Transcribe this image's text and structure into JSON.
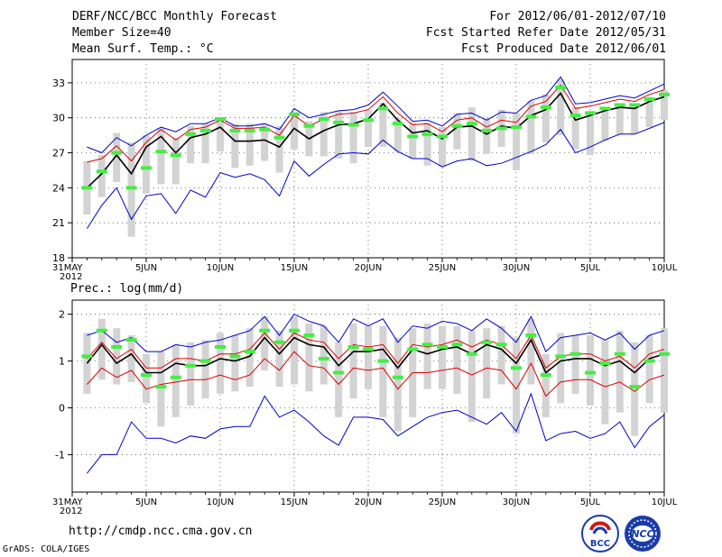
{
  "header": {
    "title": "DERF/NCC/BCC Monthly Forecast",
    "member": "Member Size=40",
    "variable": "Mean Surf. Temp.: °C",
    "period": "For 2012/06/01-2012/07/10",
    "refer_date": "Fcst Started Refer Date 2012/05/31",
    "produced_date": "Fcst Produced Date 2012/06/01"
  },
  "footer": {
    "url": "http://cmdp.ncc.cma.gov.cn",
    "grads": "GrADS: COLA/IGES",
    "logo_bcc": "BCC",
    "logo_ncc": "NCC"
  },
  "colors": {
    "max": "#0000cc",
    "min": "#0000cc",
    "p75": "#dd0000",
    "median": "#000000",
    "bar": "#d3d3d3",
    "obs": "#44ee44"
  },
  "chart_data": [
    {
      "type": "box-line",
      "title": "",
      "ylabel": "",
      "ylim": [
        18,
        35
      ],
      "yticks": [
        18,
        21,
        24,
        27,
        30,
        33
      ],
      "xlim": [
        0,
        40
      ],
      "xticks": [
        {
          "x": 0,
          "label": "31MAY",
          "sub": "2012"
        },
        {
          "x": 5,
          "label": "5JUN"
        },
        {
          "x": 10,
          "label": "10JUN"
        },
        {
          "x": 15,
          "label": "15JUN"
        },
        {
          "x": 20,
          "label": "20JUN"
        },
        {
          "x": 25,
          "label": "25JUN"
        },
        {
          "x": 30,
          "label": "30JUN"
        },
        {
          "x": 35,
          "label": "5JUL"
        },
        {
          "x": 40,
          "label": "10JUL"
        }
      ],
      "x": [
        1,
        2,
        3,
        4,
        5,
        6,
        7,
        8,
        9,
        10,
        11,
        12,
        13,
        14,
        15,
        16,
        17,
        18,
        19,
        20,
        21,
        22,
        23,
        24,
        25,
        26,
        27,
        28,
        29,
        30,
        31,
        32,
        33,
        34,
        35,
        36,
        37,
        38,
        39,
        40
      ],
      "max": [
        27.5,
        27.0,
        28.3,
        27.6,
        28.5,
        29.2,
        28.8,
        29.5,
        29.5,
        30.0,
        29.3,
        29.3,
        29.5,
        29.0,
        30.8,
        30.0,
        30.3,
        30.6,
        30.7,
        31.1,
        32.2,
        31.0,
        29.7,
        29.8,
        29.3,
        30.3,
        30.4,
        29.8,
        30.5,
        30.4,
        31.5,
        31.9,
        33.5,
        31.2,
        31.3,
        31.6,
        31.9,
        31.7,
        32.3,
        32.9
      ],
      "p75": [
        26.2,
        26.5,
        27.6,
        26.3,
        27.9,
        29.0,
        28.1,
        29.0,
        29.2,
        29.8,
        29.1,
        29.1,
        29.2,
        28.5,
        30.2,
        29.3,
        29.9,
        30.3,
        30.4,
        30.7,
        31.8,
        30.4,
        29.4,
        29.5,
        28.8,
        29.8,
        30.0,
        29.2,
        29.8,
        29.6,
        31.0,
        31.4,
        32.8,
        30.8,
        31.0,
        31.3,
        31.6,
        31.4,
        32.0,
        32.4
      ],
      "median": [
        24.0,
        25.2,
        26.8,
        25.2,
        27.5,
        28.4,
        27.0,
        28.3,
        28.6,
        29.2,
        28.0,
        28.0,
        28.1,
        27.5,
        29.1,
        28.2,
        28.9,
        29.4,
        29.5,
        29.9,
        31.2,
        29.8,
        28.7,
        28.9,
        28.2,
        29.2,
        29.3,
        28.6,
        29.3,
        29.1,
        30.2,
        30.7,
        32.1,
        29.8,
        30.2,
        30.6,
        30.9,
        30.8,
        31.4,
        31.8
      ],
      "min": [
        20.5,
        22.5,
        24.0,
        21.3,
        23.3,
        23.5,
        21.8,
        23.8,
        23.2,
        25.3,
        24.9,
        25.2,
        24.7,
        23.3,
        26.3,
        25.0,
        26.0,
        26.9,
        27.0,
        26.9,
        28.1,
        27.1,
        26.5,
        26.5,
        25.8,
        26.3,
        26.5,
        25.9,
        26.1,
        26.6,
        27.1,
        27.7,
        29.0,
        27.0,
        27.5,
        28.1,
        28.6,
        28.6,
        29.1,
        29.6
      ],
      "bar_top": [
        26.3,
        26.8,
        28.7,
        27.9,
        28.5,
        29.1,
        28.3,
        29.3,
        29.5,
        30.0,
        29.5,
        29.5,
        29.4,
        29.3,
        30.5,
        29.7,
        30.5,
        30.6,
        30.5,
        30.7,
        31.3,
        30.0,
        29.6,
        29.6,
        29.2,
        30.4,
        30.9,
        30.0,
        30.7,
        30.4,
        31.5,
        32.0,
        33.3,
        30.9,
        30.6,
        30.9,
        31.0,
        30.9,
        31.5,
        32.4
      ],
      "bar_bottom": [
        21.7,
        23.2,
        24.5,
        19.8,
        23.5,
        24.3,
        24.3,
        26.1,
        26.1,
        27.1,
        25.7,
        25.9,
        26.3,
        25.3,
        27.3,
        26.7,
        26.7,
        26.5,
        26.1,
        27.5,
        27.5,
        27.1,
        26.5,
        25.9,
        25.8,
        27.3,
        26.3,
        26.9,
        27.5,
        25.5,
        26.9,
        27.9,
        28.5,
        27.3,
        26.8,
        28.0,
        28.6,
        28.6,
        29.2,
        29.8
      ],
      "obs": [
        24.0,
        25.4,
        27.0,
        24.0,
        25.7,
        27.1,
        26.8,
        28.6,
        28.9,
        29.9,
        28.9,
        28.9,
        29.0,
        28.3,
        30.3,
        29.3,
        29.9,
        29.6,
        29.4,
        29.8,
        30.8,
        29.5,
        28.4,
        28.6,
        28.4,
        29.3,
        29.5,
        28.9,
        29.1,
        29.2,
        30.1,
        30.9,
        32.6,
        30.2,
        30.4,
        30.8,
        31.1,
        31.1,
        31.6,
        32.0
      ],
      "legend": []
    },
    {
      "type": "box-line",
      "title": "Prec.: log(mm/d)",
      "ylabel": "",
      "ylim": [
        -1.8,
        2.3
      ],
      "yticks": [
        -1,
        0,
        1,
        2
      ],
      "xlim": [
        0,
        40
      ],
      "xticks": [
        {
          "x": 0,
          "label": "31MAY",
          "sub": "2012"
        },
        {
          "x": 5,
          "label": "5JUN"
        },
        {
          "x": 10,
          "label": "10JUN"
        },
        {
          "x": 15,
          "label": "15JUN"
        },
        {
          "x": 20,
          "label": "20JUN"
        },
        {
          "x": 25,
          "label": "25JUN"
        },
        {
          "x": 30,
          "label": "30JUN"
        },
        {
          "x": 35,
          "label": "5JUL"
        },
        {
          "x": 40,
          "label": "10JUL"
        }
      ],
      "x": [
        1,
        2,
        3,
        4,
        5,
        6,
        7,
        8,
        9,
        10,
        11,
        12,
        13,
        14,
        15,
        16,
        17,
        18,
        19,
        20,
        21,
        22,
        23,
        24,
        25,
        26,
        27,
        28,
        29,
        30,
        31,
        32,
        33,
        34,
        35,
        36,
        37,
        38,
        39,
        40
      ],
      "max": [
        1.55,
        1.65,
        1.4,
        1.5,
        1.2,
        1.2,
        1.35,
        1.3,
        1.4,
        1.45,
        1.55,
        1.65,
        1.95,
        1.55,
        2.0,
        1.85,
        1.75,
        1.4,
        1.9,
        1.75,
        1.9,
        1.4,
        1.75,
        1.7,
        1.85,
        1.8,
        1.65,
        1.9,
        1.7,
        1.4,
        1.95,
        1.2,
        1.5,
        1.55,
        1.6,
        1.45,
        1.6,
        1.25,
        1.55,
        1.65
      ],
      "p75": [
        1.05,
        1.4,
        1.05,
        1.25,
        0.85,
        0.85,
        1.05,
        1.05,
        1.0,
        1.15,
        1.15,
        1.25,
        1.6,
        1.25,
        1.6,
        1.45,
        1.4,
        1.05,
        1.35,
        1.3,
        1.35,
        0.95,
        1.35,
        1.3,
        1.35,
        1.45,
        1.3,
        1.45,
        1.35,
        1.05,
        1.55,
        0.85,
        1.1,
        1.15,
        1.15,
        1.0,
        1.1,
        0.85,
        1.15,
        1.25
      ],
      "median": [
        0.95,
        1.35,
        0.95,
        1.15,
        0.75,
        0.75,
        0.95,
        0.9,
        0.9,
        1.05,
        1.0,
        1.1,
        1.5,
        1.15,
        1.5,
        1.35,
        1.3,
        0.9,
        1.2,
        1.2,
        1.25,
        0.85,
        1.25,
        1.15,
        1.25,
        1.3,
        1.15,
        1.35,
        1.25,
        0.95,
        1.45,
        0.75,
        1.0,
        1.05,
        1.05,
        0.9,
        1.0,
        0.75,
        1.05,
        1.15
      ],
      "p25": [
        0.5,
        0.85,
        0.65,
        0.8,
        0.4,
        0.5,
        0.55,
        0.6,
        0.6,
        0.7,
        0.6,
        0.7,
        1.05,
        0.8,
        1.2,
        0.9,
        0.85,
        0.5,
        0.85,
        0.8,
        0.85,
        0.4,
        0.75,
        0.75,
        0.8,
        0.85,
        0.7,
        0.85,
        0.8,
        0.4,
        0.95,
        0.25,
        0.55,
        0.6,
        0.6,
        0.45,
        0.55,
        0.35,
        0.6,
        0.7
      ],
      "min": [
        -1.4,
        -1.0,
        -1.0,
        -0.3,
        -0.65,
        -0.65,
        -0.75,
        -0.6,
        -0.65,
        -0.45,
        -0.4,
        -0.4,
        0.25,
        -0.2,
        -0.05,
        -0.3,
        -0.6,
        -0.8,
        -0.2,
        -0.2,
        -0.25,
        -0.6,
        -0.4,
        -0.2,
        -0.1,
        -0.05,
        -0.2,
        -0.35,
        -0.1,
        -0.5,
        0.3,
        -0.7,
        -0.55,
        -0.5,
        -0.65,
        -0.55,
        -0.3,
        -0.85,
        -0.4,
        -0.15
      ],
      "bar_top": [
        1.6,
        1.9,
        1.7,
        1.55,
        1.15,
        1.2,
        1.35,
        1.4,
        1.45,
        1.6,
        1.55,
        1.7,
        1.95,
        1.65,
        1.95,
        1.8,
        1.75,
        1.4,
        1.8,
        1.75,
        1.75,
        1.5,
        1.7,
        1.8,
        1.75,
        1.75,
        1.65,
        1.7,
        1.75,
        1.5,
        1.9,
        1.15,
        1.6,
        1.55,
        1.55,
        1.45,
        1.65,
        1.4,
        1.55,
        1.7
      ],
      "bar_bottom": [
        0.3,
        0.6,
        0.5,
        0.55,
        0.1,
        -0.4,
        -0.2,
        0.05,
        0.2,
        0.3,
        0.35,
        0.45,
        0.8,
        0.45,
        0.5,
        0.35,
        0.5,
        -0.2,
        0.2,
        0.4,
        -0.2,
        -0.5,
        -0.2,
        0.4,
        0.4,
        0.3,
        -0.3,
        0.2,
        0.5,
        -0.55,
        0.5,
        -0.2,
        0.1,
        0.3,
        0.05,
        -0.35,
        -0.1,
        -0.6,
        0.1,
        -0.1
      ],
      "obs": [
        1.1,
        1.65,
        1.3,
        1.45,
        0.7,
        0.45,
        0.65,
        0.9,
        1.0,
        1.3,
        1.1,
        1.2,
        1.65,
        1.4,
        1.65,
        1.55,
        1.05,
        0.75,
        1.3,
        1.25,
        1.0,
        0.65,
        1.25,
        1.35,
        1.3,
        1.35,
        1.15,
        1.4,
        1.35,
        0.85,
        1.55,
        0.7,
        1.1,
        1.15,
        0.75,
        0.95,
        1.15,
        0.45,
        1.0,
        1.15
      ],
      "legend": []
    }
  ]
}
